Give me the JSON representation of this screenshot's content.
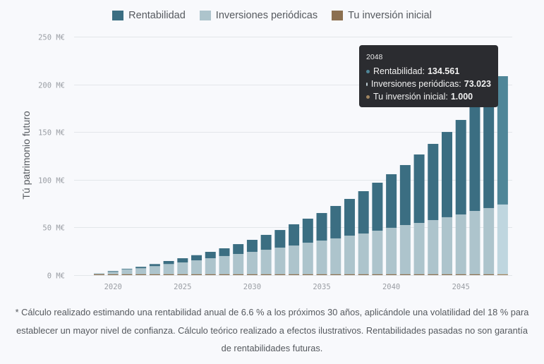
{
  "chart_data": {
    "type": "bar",
    "stacked": true,
    "title": "",
    "xlabel": "",
    "ylabel": "Tú patrimonio futuro",
    "ylim": [
      0,
      250
    ],
    "y_ticks": [
      0,
      50,
      100,
      150,
      200,
      250
    ],
    "y_tick_suffix": " M€",
    "x_tick_labels": [
      "2020",
      "2025",
      "2030",
      "2035",
      "2040",
      "2045"
    ],
    "grid": true,
    "legend_position": "top-center",
    "categories": [
      2019,
      2020,
      2021,
      2022,
      2023,
      2024,
      2025,
      2026,
      2027,
      2028,
      2029,
      2030,
      2031,
      2032,
      2033,
      2034,
      2035,
      2036,
      2037,
      2038,
      2039,
      2040,
      2041,
      2042,
      2043,
      2044,
      2045,
      2046,
      2047,
      2048
    ],
    "series": [
      {
        "name": "Tu inversión inicial",
        "color": "#8c7050",
        "values": [
          1,
          1,
          1,
          1,
          1,
          1,
          1,
          1,
          1,
          1,
          1,
          1,
          1,
          1,
          1,
          1,
          1,
          1,
          1,
          1,
          1,
          1,
          1,
          1,
          1,
          1,
          1,
          1,
          1,
          1
        ]
      },
      {
        "name": "Inversiones periódicas",
        "color": "#adc4cc",
        "values": [
          1.0,
          2.4,
          5.1,
          6.2,
          8.4,
          10.6,
          12.3,
          14.5,
          16.7,
          19.0,
          21.2,
          23.4,
          25.6,
          27.8,
          30.0,
          33.0,
          35.2,
          37.5,
          40.4,
          42.6,
          45.6,
          48.6,
          51.5,
          53.7,
          56.7,
          59.7,
          62.6,
          66.3,
          69.3,
          73.023
        ]
      },
      {
        "name": "Rentabilidad",
        "color": "#3b6e82",
        "values": [
          0.0,
          0.8,
          0.6,
          1.5,
          2.2,
          3.2,
          4.4,
          5.4,
          6.7,
          8.1,
          10.3,
          12.6,
          15.6,
          18.5,
          22.3,
          25.2,
          28.9,
          34.0,
          38.5,
          44.4,
          50.3,
          56.2,
          62.9,
          71.8,
          79.9,
          89.4,
          99.1,
          109.2,
          121.7,
          134.561
        ]
      }
    ],
    "highlighted_category": 2048
  },
  "legend": [
    {
      "label": "Rentabilidad",
      "color": "#3b6e82"
    },
    {
      "label": "Inversiones periódicas",
      "color": "#adc4cc"
    },
    {
      "label": "Tu inversión inicial",
      "color": "#8c7050"
    }
  ],
  "tooltip": {
    "title": "2048",
    "rows": [
      {
        "label": "Rentabilidad:",
        "value": "134.561",
        "color": "#4f8698"
      },
      {
        "label": "Inversiones periódicas:",
        "value": "73.023",
        "color": "#c4d4da"
      },
      {
        "label": "Tu inversión inicial:",
        "value": "1.000",
        "color": "#a0845f"
      }
    ]
  },
  "highlight_colors": {
    "Rentabilidad": "#4f8698",
    "Inversiones periódicas": "#bfd6df",
    "Tu inversión inicial": "#a0845f"
  },
  "footnote": "* Cálculo realizado estimando una rentabilidad anual de 6.6 % a los próximos 30 años, aplicándole una volatilidad del 18 % para establecer un mayor nivel de confianza. Cálculo teórico realizado a efectos ilustrativos. Rentabilidades pasadas no son garantía de rentabilidades futuras."
}
